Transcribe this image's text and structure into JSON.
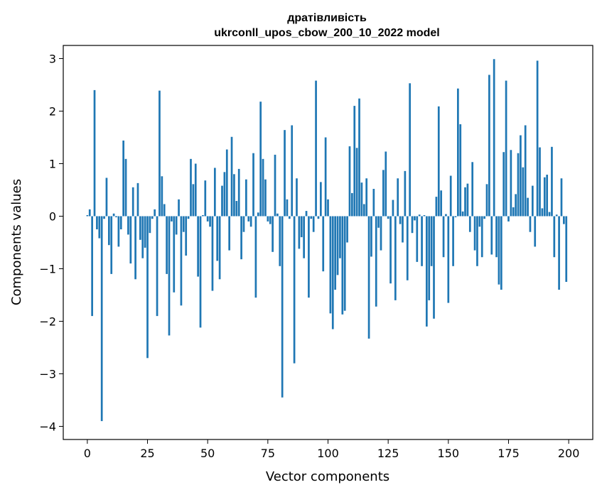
{
  "chart_data": {
    "type": "bar",
    "title_line1": "дратівливість",
    "title_line2": "ukrconll_upos_cbow_200_10_2022 model",
    "xlabel": "Vector components",
    "ylabel": "Components values",
    "xlim": [
      -10,
      210
    ],
    "ylim": [
      -4.25,
      3.25
    ],
    "xticks": [
      0,
      25,
      50,
      75,
      100,
      125,
      150,
      175,
      200
    ],
    "yticks": [
      -4,
      -3,
      -2,
      -1,
      0,
      1,
      2,
      3
    ],
    "xtick_labels": [
      "0",
      "25",
      "50",
      "75",
      "100",
      "125",
      "150",
      "175",
      "200"
    ],
    "ytick_labels": [
      "−4",
      "−3",
      "−2",
      "−1",
      "0",
      "1",
      "2",
      "3"
    ],
    "bar_color": "#1f77b4",
    "grid": false,
    "legend": "none",
    "values": [
      0.02,
      0.13,
      -1.9,
      2.4,
      -0.25,
      -0.42,
      -3.9,
      -0.05,
      0.73,
      -0.55,
      -1.1,
      0.05,
      -0.02,
      -0.58,
      -0.25,
      1.44,
      1.09,
      -0.35,
      -0.9,
      0.55,
      -1.2,
      0.63,
      -0.45,
      -0.8,
      -0.6,
      -2.7,
      -0.32,
      -0.05,
      0.13,
      -1.9,
      2.39,
      0.76,
      0.23,
      -1.1,
      -2.27,
      -0.1,
      -1.45,
      -0.35,
      0.32,
      -1.7,
      -0.3,
      -0.75,
      -0.05,
      1.09,
      0.61,
      1.0,
      -1.15,
      -2.12,
      0.02,
      0.68,
      -0.1,
      -0.2,
      -1.42,
      0.92,
      -0.85,
      -1.2,
      0.58,
      0.84,
      1.27,
      -0.65,
      1.51,
      0.8,
      0.29,
      0.9,
      -0.82,
      -0.3,
      0.7,
      -0.1,
      -0.2,
      1.2,
      -1.55,
      0.07,
      2.18,
      1.09,
      0.7,
      -0.1,
      -0.15,
      -0.68,
      1.17,
      0.05,
      -0.95,
      -3.45,
      1.64,
      0.32,
      -0.05,
      1.73,
      -2.8,
      0.72,
      -0.62,
      -0.4,
      -0.8,
      0.1,
      -1.55,
      -0.05,
      -0.3,
      2.58,
      -0.05,
      0.65,
      -1.05,
      1.5,
      0.32,
      -1.85,
      -2.15,
      -1.4,
      -1.12,
      -0.8,
      -1.87,
      -1.8,
      -0.5,
      1.33,
      0.44,
      2.1,
      1.3,
      2.24,
      0.64,
      0.23,
      0.72,
      -2.33,
      -0.77,
      0.52,
      -1.72,
      -0.22,
      -0.65,
      0.88,
      1.23,
      -0.05,
      -1.28,
      0.31,
      -1.6,
      0.72,
      -0.15,
      -0.5,
      0.86,
      -1.22,
      2.53,
      -0.32,
      -0.08,
      -0.87,
      0.03,
      -0.95,
      0.02,
      -2.1,
      -1.6,
      -0.95,
      -1.95,
      0.37,
      2.09,
      0.49,
      -0.78,
      0.04,
      -1.65,
      0.77,
      -0.95,
      -0.02,
      2.43,
      1.75,
      0.09,
      0.55,
      0.62,
      -0.3,
      1.03,
      -0.65,
      -0.95,
      -0.2,
      -0.78,
      -0.05,
      0.61,
      2.69,
      -0.73,
      2.99,
      -0.78,
      -1.3,
      -1.4,
      1.22,
      2.58,
      -0.1,
      1.26,
      0.17,
      0.42,
      1.2,
      1.54,
      0.93,
      1.73,
      0.35,
      -0.3,
      0.58,
      -0.58,
      2.96,
      1.31,
      0.15,
      0.74,
      0.79,
      0.08,
      1.32,
      -0.78,
      0.03,
      -1.4,
      0.72,
      -0.15,
      -1.25
    ]
  }
}
